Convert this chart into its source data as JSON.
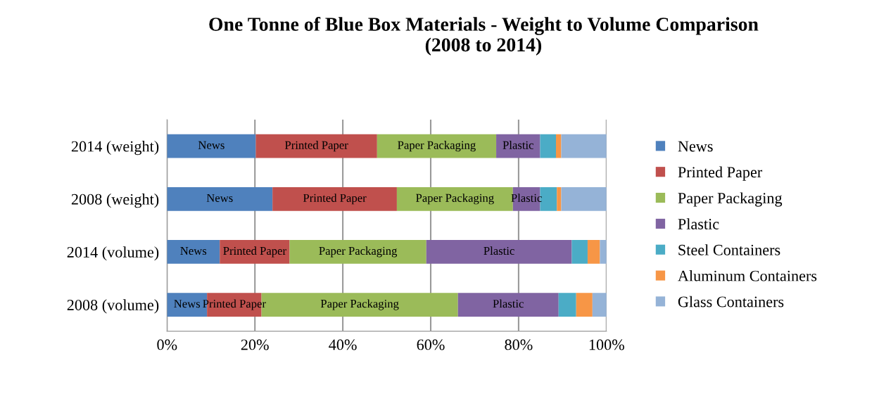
{
  "chart_data": {
    "type": "bar",
    "orientation": "horizontal",
    "stacked": true,
    "title": "One Tonne of Blue Box Materials - Weight to Volume Comparison\n(2008 to 2014)",
    "categories": [
      "2014 (weight)",
      "2008 (weight)",
      "2014 (volume)",
      "2008 (volume)"
    ],
    "series": [
      {
        "name": "News",
        "color": "#4f81bd",
        "values": [
          20.2,
          24.0,
          12.0,
          9.1
        ],
        "value_labels": [
          "News",
          "News",
          "News",
          "News"
        ]
      },
      {
        "name": "Printed Paper",
        "color": "#c0504d",
        "values": [
          27.6,
          28.3,
          15.9,
          12.4
        ],
        "value_labels": [
          "Printed Paper",
          "Printed Paper",
          "Printed Paper",
          "Printed Paper"
        ]
      },
      {
        "name": "Paper Packaging",
        "color": "#9bbb59",
        "values": [
          27.1,
          26.4,
          31.1,
          44.7
        ],
        "value_labels": [
          "Paper Packaging",
          "Paper Packaging",
          "Paper Packaging",
          "Paper Packaging"
        ]
      },
      {
        "name": "Plastic",
        "color": "#8064a2",
        "values": [
          10.0,
          6.2,
          33.1,
          22.9
        ],
        "value_labels": [
          "Plastic",
          "Plastic",
          "Plastic",
          "Plastic"
        ]
      },
      {
        "name": "Steel Containers",
        "color": "#4bacc6",
        "values": [
          3.6,
          3.8,
          3.6,
          4.0
        ]
      },
      {
        "name": "Aluminum Containers",
        "color": "#f79646",
        "values": [
          1.2,
          1.0,
          2.8,
          3.7
        ]
      },
      {
        "name": "Glass Containers",
        "color": "#95b3d7",
        "values": [
          10.3,
          10.3,
          1.5,
          3.2
        ]
      }
    ],
    "xlim": [
      0,
      100
    ],
    "xticks": [
      {
        "value": 0,
        "label": "0%"
      },
      {
        "value": 20,
        "label": "20%"
      },
      {
        "value": 40,
        "label": "40%"
      },
      {
        "value": 60,
        "label": "60%"
      },
      {
        "value": 80,
        "label": "80%"
      },
      {
        "value": 100,
        "label": "100%"
      }
    ],
    "grid": "x",
    "legend": "right"
  }
}
